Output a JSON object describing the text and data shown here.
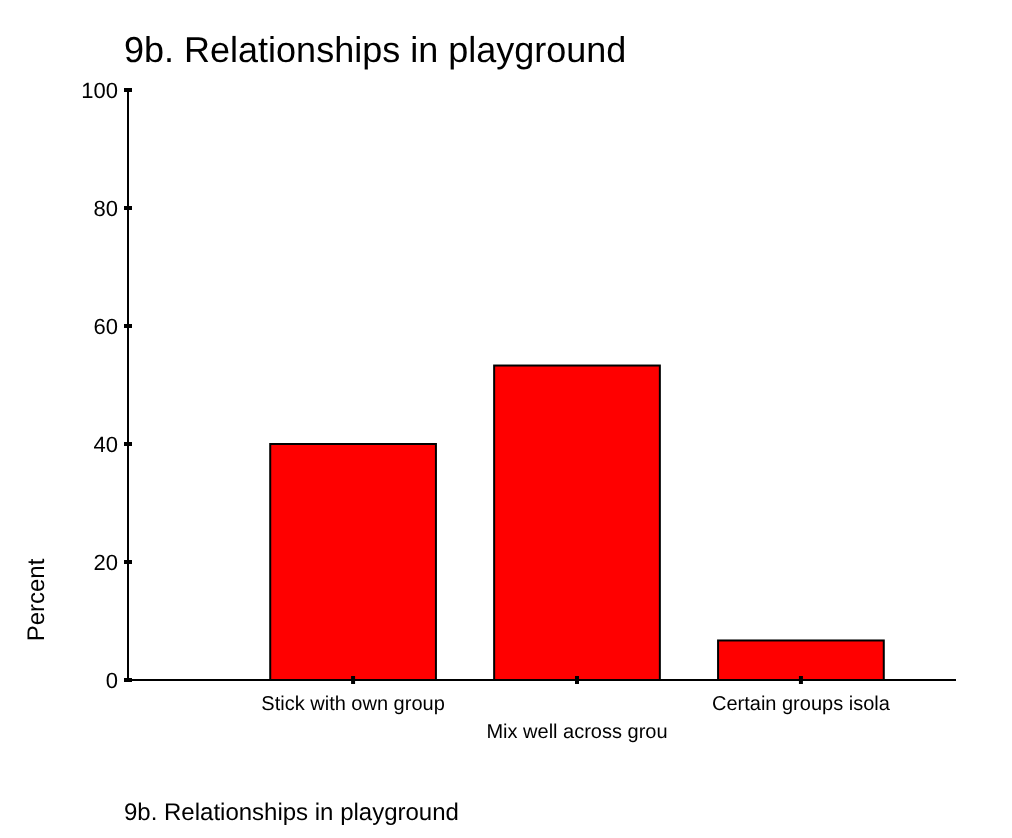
{
  "chart_data": {
    "type": "bar",
    "title": "9b. Relationships in playground",
    "ylabel": "Percent",
    "categories": [
      "Stick with own group",
      "Mix well across grou",
      "Certain groups isola"
    ],
    "values": [
      40,
      53.3,
      6.7
    ],
    "color": "#ff0000",
    "ylim": [
      0,
      100
    ],
    "yticks": [
      0,
      20,
      40,
      60,
      80,
      100
    ],
    "grid": false,
    "annotations": [
      "9b. Relationships in playground"
    ]
  }
}
